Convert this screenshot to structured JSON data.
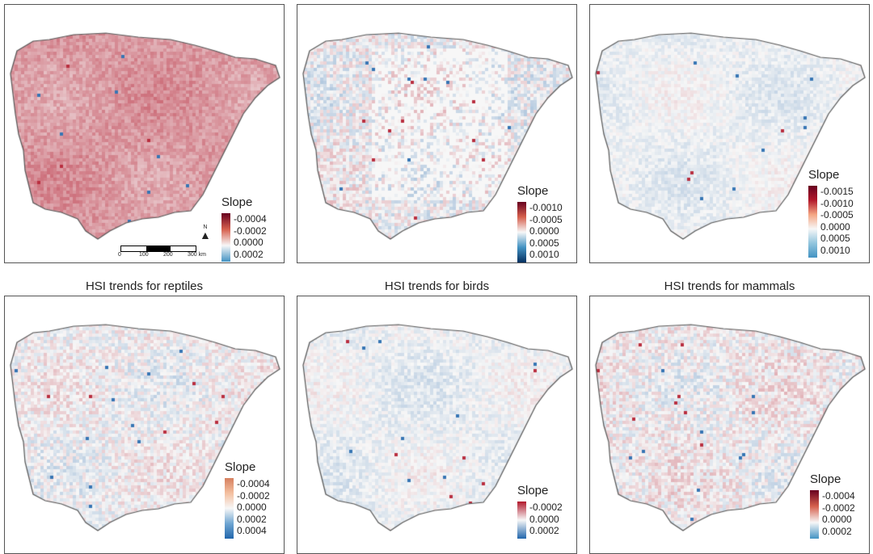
{
  "panels": [
    {
      "title": "",
      "legend": {
        "title": "Slope",
        "labels": [
          "-0.0004",
          "-0.0002",
          "0.0000",
          "0.0002"
        ]
      }
    },
    {
      "title": "",
      "legend": {
        "title": "Slope",
        "labels": [
          "-0.0010",
          "-0.0005",
          "0.0000",
          "0.0005",
          "0.0010"
        ]
      }
    },
    {
      "title": "",
      "legend": {
        "title": "Slope",
        "labels": [
          "-0.0015",
          "-0.0010",
          "-0.0005",
          "0.0000",
          "0.0005",
          "0.0010"
        ]
      }
    },
    {
      "title": "HSI trends for reptiles",
      "legend": {
        "title": "Slope",
        "labels": [
          "-0.0004",
          "-0.0002",
          "0.0000",
          "0.0002",
          "0.0004"
        ]
      }
    },
    {
      "title": "HSI trends for birds",
      "legend": {
        "title": "Slope",
        "labels": [
          "-0.0002",
          "0.0000",
          "0.0002"
        ]
      }
    },
    {
      "title": "HSI trends for mammals",
      "legend": {
        "title": "Slope",
        "labels": [
          "-0.0004",
          "-0.0002",
          "0.0000",
          "0.0002"
        ]
      }
    }
  ],
  "scale_bar": {
    "labels": [
      "0",
      "100",
      "200",
      "300 km"
    ]
  },
  "north_arrow": {
    "label": "N"
  },
  "colors": {
    "positive": "#b2182b",
    "neutral": "#f7f7f7",
    "negative": "#2166ac"
  }
}
